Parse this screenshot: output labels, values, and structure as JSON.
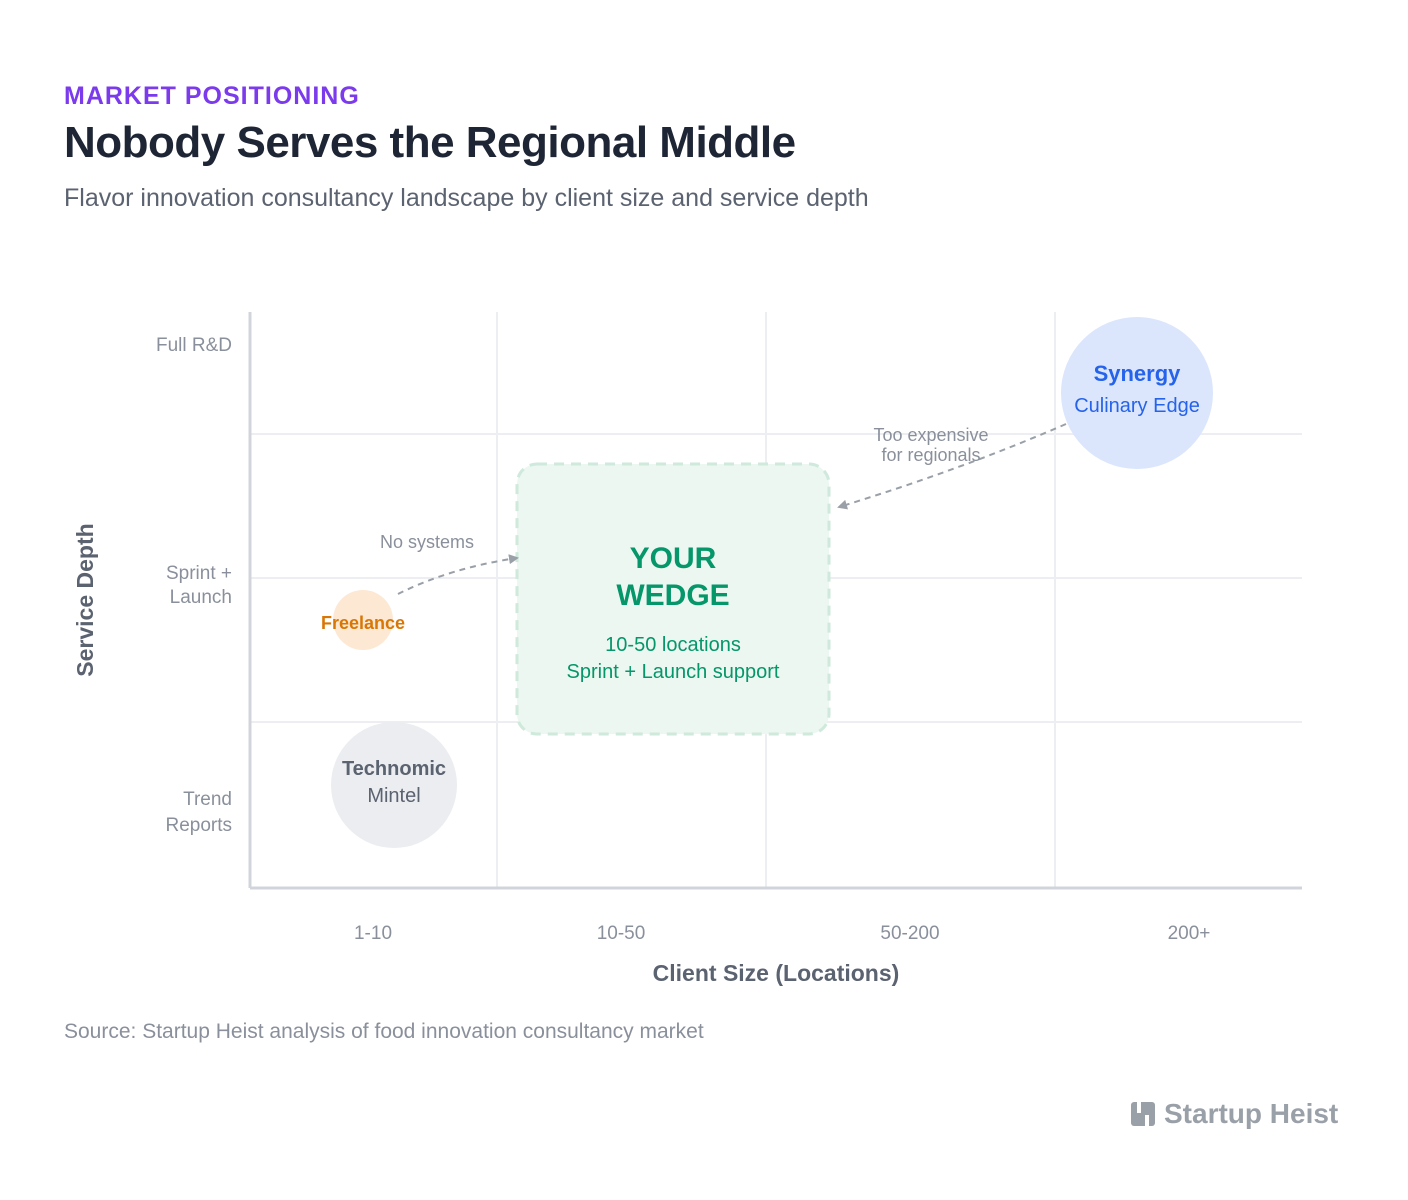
{
  "header": {
    "eyebrow": "MARKET POSITIONING",
    "title": "Nobody Serves the Regional Middle",
    "subtitle": "Flavor innovation consultancy landscape by client size and service depth"
  },
  "chart_data": {
    "type": "scatter",
    "xlabel": "Client Size (Locations)",
    "ylabel": "Service Depth",
    "x_categories": [
      "1-10",
      "10-50",
      "50-200",
      "200+"
    ],
    "y_categories": [
      {
        "line1": "Trend",
        "line2": "Reports"
      },
      {
        "line1": "Sprint +",
        "line2": "Launch"
      },
      {
        "line1": "Full R&D",
        "line2": ""
      }
    ],
    "grid": true,
    "points": [
      {
        "label1": "Synergy",
        "label2": "Culinary Edge",
        "x": "200+",
        "y": "Full R&D",
        "size": "large",
        "color": "#dbe6fd",
        "text_color": "#2563eb"
      },
      {
        "label1": "Freelance",
        "label2": "",
        "x": "1-10",
        "y": "Sprint + Launch",
        "size": "small",
        "color": "#fde8d4",
        "text_color": "#d97706"
      },
      {
        "label1": "Technomic",
        "label2": "Mintel",
        "x": "1-10",
        "y": "Trend Reports",
        "size": "medium",
        "color": "#ebedf0",
        "text_color": "#5b6270"
      }
    ],
    "highlight": {
      "line1": "YOUR",
      "line2": "WEDGE",
      "detail1": "10-50 locations",
      "detail2": "Sprint + Launch support",
      "x": "10-50",
      "y": "Sprint + Launch",
      "color": "#059669"
    },
    "annotations": [
      {
        "text1": "Too expensive",
        "text2": "for regionals"
      },
      {
        "text1": "No systems",
        "text2": ""
      }
    ]
  },
  "footer": {
    "source": "Source: Startup Heist analysis of food innovation consultancy market",
    "brand": "Startup Heist",
    "brand_icon": "startup-heist-logo-icon"
  }
}
